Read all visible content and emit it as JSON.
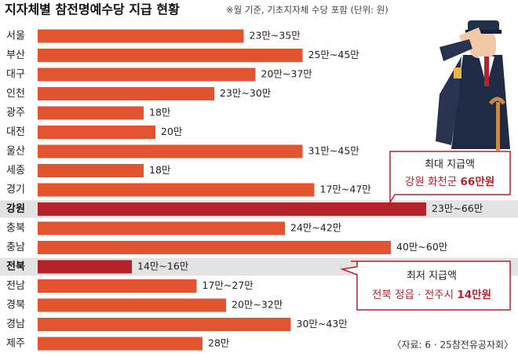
{
  "chart_data": {
    "type": "bar",
    "orientation": "horizontal",
    "title": "지자체별 참전명예수당 지급 현황",
    "subtitle": "※월 기준, 기초지자체 수당 포함 (단위: 원)",
    "categories": [
      "서울",
      "부산",
      "대구",
      "인천",
      "광주",
      "대전",
      "울산",
      "세종",
      "경기",
      "강원",
      "충북",
      "충남",
      "전북",
      "전남",
      "경북",
      "경남",
      "제주"
    ],
    "values": [
      35,
      45,
      37,
      30,
      18,
      20,
      45,
      18,
      47,
      66,
      42,
      60,
      16,
      27,
      32,
      43,
      28
    ],
    "value_labels": [
      "23만~35만",
      "25만~45만",
      "20만~37만",
      "23만~30만",
      "18만",
      "20만",
      "31만~45만",
      "18만",
      "17만~47만",
      "23만~66만",
      "24만~42만",
      "40만~60만",
      "14만~16만",
      "17만~27만",
      "20만~32만",
      "30만~43만",
      "28만"
    ],
    "color": "#e2532f",
    "highlight_color": "#b5222c",
    "highlight": [
      false,
      false,
      false,
      false,
      false,
      false,
      false,
      false,
      false,
      true,
      false,
      false,
      true,
      false,
      false,
      false,
      false
    ],
    "annotations": [
      {
        "title": "최대 지급액",
        "text": "강원 화천군",
        "amount": "66만원"
      },
      {
        "title": "최저 지급액",
        "text": "전북 정읍 · 전주시",
        "amount": "14만원"
      }
    ],
    "source": "〈자료: 6 · 25참전유공자회〉"
  }
}
